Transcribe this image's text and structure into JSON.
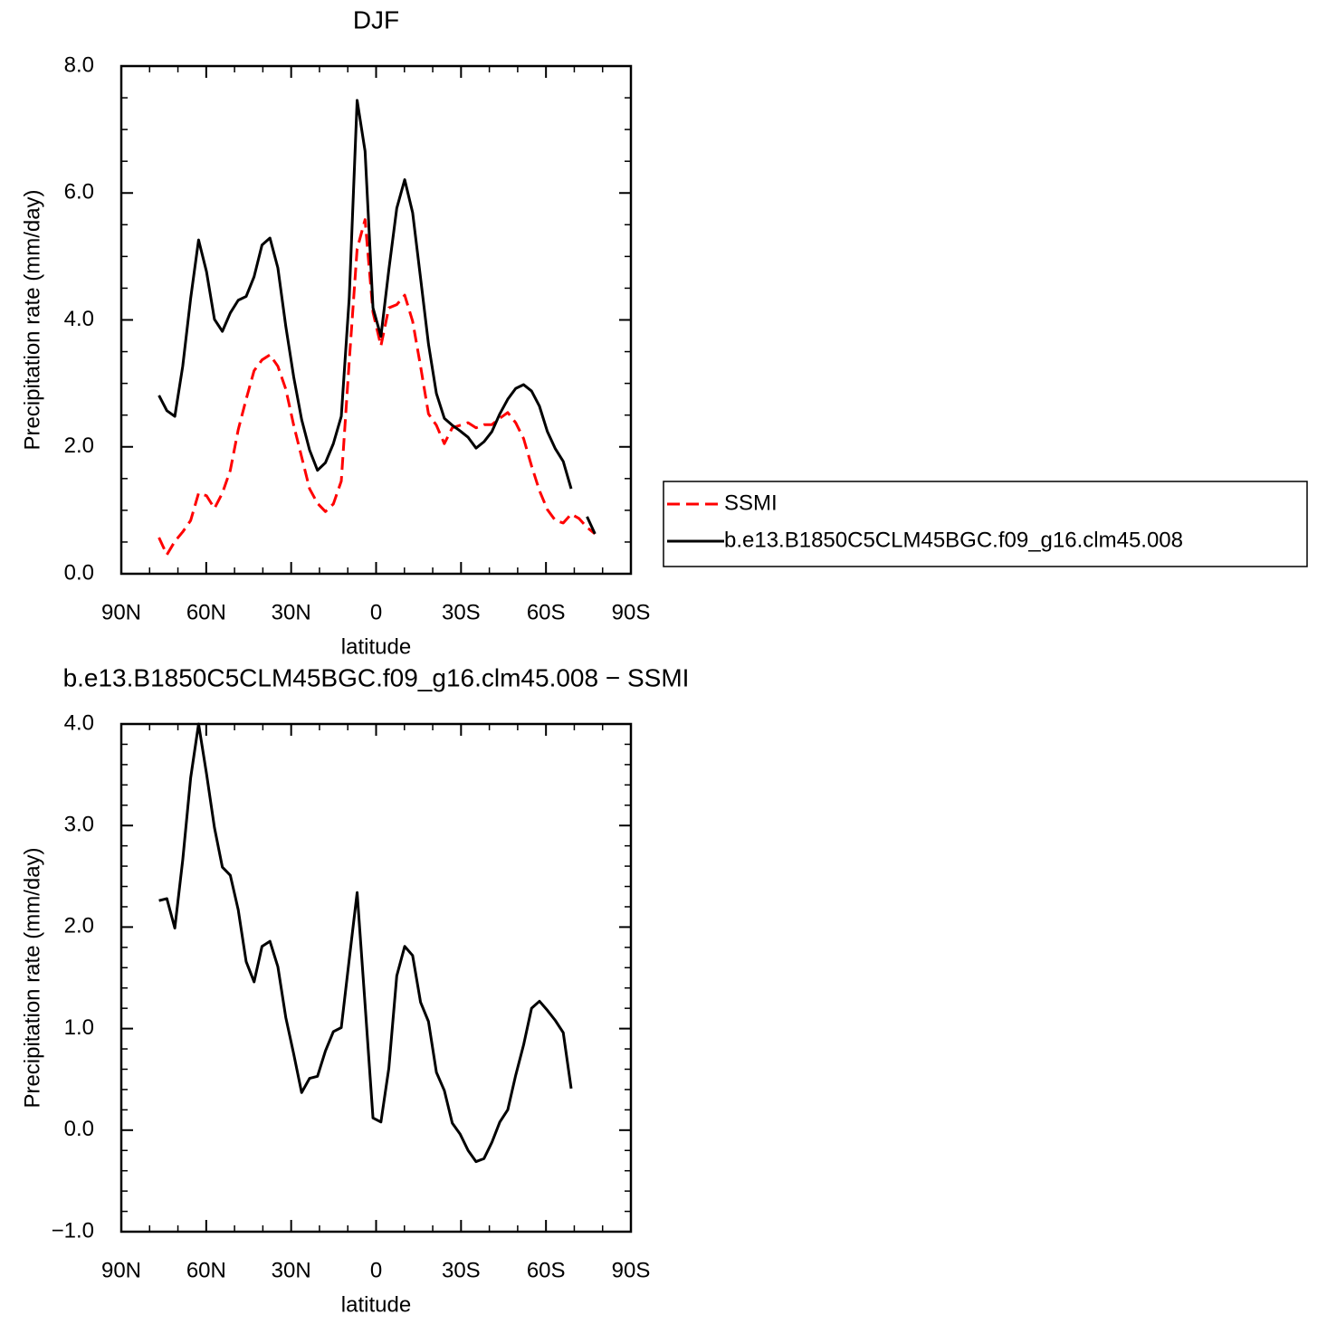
{
  "chart_data": [
    {
      "type": "line",
      "title": "DJF",
      "xlabel": "latitude",
      "ylabel": "Precipitation rate (mm/day)",
      "xlim": [
        90,
        -90
      ],
      "xticks": [
        {
          "value": 90,
          "label": "90N"
        },
        {
          "value": 60,
          "label": "60N"
        },
        {
          "value": 30,
          "label": "30N"
        },
        0,
        {
          "value": -30,
          "label": "30S"
        },
        {
          "value": -60,
          "label": "60S"
        },
        {
          "value": -90,
          "label": "90S"
        }
      ],
      "ylim": [
        0,
        8
      ],
      "yticks": [
        {
          "value": 0,
          "label": "0.0"
        },
        {
          "value": 2,
          "label": "2.0"
        },
        {
          "value": 4,
          "label": "4.0"
        },
        {
          "value": 6,
          "label": "6.0"
        },
        {
          "value": 8,
          "label": "8.0"
        }
      ],
      "legend": "right",
      "x": [
        76.7,
        73.9,
        71.1,
        68.3,
        65.5,
        62.7,
        59.9,
        57.1,
        54.3,
        51.5,
        48.7,
        45.9,
        43.1,
        40.3,
        37.5,
        34.7,
        31.9,
        29.1,
        26.3,
        23.5,
        20.7,
        17.9,
        15.1,
        12.3,
        9.5,
        6.7,
        3.9,
        1.1,
        -1.7,
        -4.5,
        -7.3,
        -10.1,
        -12.9,
        -15.7,
        -18.5,
        -21.3,
        -24.1,
        -26.9,
        -29.7,
        -32.5,
        -35.3,
        -38.1,
        -40.9,
        -43.7,
        -46.5,
        -49.3,
        -52.1,
        -54.9,
        -57.7,
        -60.5,
        -63.3,
        -66.1,
        -68.9,
        -71.7,
        -74.5,
        -77.3
      ],
      "series": [
        {
          "name": "SSMI",
          "color": "#ff0000",
          "dash": "dashed",
          "values": [
            0.57,
            0.3,
            0.51,
            0.66,
            0.84,
            1.27,
            1.23,
            1.03,
            1.27,
            1.63,
            2.27,
            2.75,
            3.2,
            3.37,
            3.45,
            3.27,
            2.91,
            2.34,
            1.84,
            1.34,
            1.11,
            0.98,
            1.1,
            1.46,
            3.34,
            5.12,
            5.58,
            4.12,
            3.59,
            4.19,
            4.24,
            4.39,
            3.98,
            3.27,
            2.52,
            2.34,
            2.05,
            2.3,
            2.34,
            2.38,
            2.3,
            2.35,
            2.35,
            2.45,
            2.54,
            2.38,
            2.13,
            1.7,
            1.31,
            1.01,
            0.84,
            0.8,
            0.94,
            0.87,
            0.73,
            0.63
          ]
        },
        {
          "name": "b.e13.B1850C5CLM45BGC.f09_g16.clm45.008",
          "color": "#000000",
          "dash": "solid",
          "values": [
            2.81,
            2.57,
            2.48,
            3.27,
            4.34,
            5.26,
            4.76,
            4.01,
            3.82,
            4.11,
            4.31,
            4.37,
            4.68,
            5.18,
            5.29,
            4.82,
            3.9,
            3.1,
            2.43,
            1.95,
            1.63,
            1.75,
            2.05,
            2.48,
            4.34,
            7.46,
            6.66,
            4.19,
            3.74,
            4.79,
            5.76,
            6.21,
            5.69,
            4.66,
            3.62,
            2.84,
            2.45,
            2.34,
            2.25,
            2.15,
            1.98,
            2.08,
            2.24,
            2.52,
            2.75,
            2.92,
            2.98,
            2.88,
            2.64,
            2.24,
            1.97,
            1.77,
            1.34,
            null,
            0.9,
            0.63
          ]
        }
      ]
    },
    {
      "type": "line",
      "title": "b.e13.B1850C5CLM45BGC.f09_g16.clm45.008 − SSMI",
      "xlabel": "latitude",
      "ylabel": "Precipitation rate (mm/day)",
      "xlim": [
        90,
        -90
      ],
      "xticks": [
        {
          "value": 90,
          "label": "90N"
        },
        {
          "value": 60,
          "label": "60N"
        },
        {
          "value": 30,
          "label": "30N"
        },
        0,
        {
          "value": -30,
          "label": "30S"
        },
        {
          "value": -60,
          "label": "60S"
        },
        {
          "value": -90,
          "label": "90S"
        }
      ],
      "ylim": [
        -1,
        4
      ],
      "yticks": [
        {
          "value": -1,
          "label": "−1.0"
        },
        {
          "value": 0,
          "label": "0.0"
        },
        {
          "value": 1,
          "label": "1.0"
        },
        {
          "value": 2,
          "label": "2.0"
        },
        {
          "value": 3,
          "label": "3.0"
        },
        {
          "value": 4,
          "label": "4.0"
        }
      ],
      "x": [
        76.7,
        73.9,
        71.1,
        68.3,
        65.5,
        62.7,
        59.9,
        57.1,
        54.3,
        51.5,
        48.7,
        45.9,
        43.1,
        40.3,
        37.5,
        34.7,
        31.9,
        29.1,
        26.3,
        23.5,
        20.7,
        17.9,
        15.1,
        12.3,
        9.5,
        6.7,
        3.9,
        1.1,
        -1.7,
        -4.5,
        -7.3,
        -10.1,
        -12.9,
        -15.7,
        -18.5,
        -21.3,
        -24.1,
        -26.9,
        -29.7,
        -32.5,
        -35.3,
        -38.1,
        -40.9,
        -43.7,
        -46.5,
        -49.3,
        -52.1,
        -54.9,
        -57.7,
        -60.5,
        -63.3,
        -66.1,
        -68.9,
        -71.7,
        -74.5,
        -77.3
      ],
      "series": [
        {
          "color": "#000000",
          "dash": "solid",
          "values": [
            2.26,
            2.28,
            1.99,
            2.66,
            3.47,
            4.0,
            3.51,
            2.98,
            2.59,
            2.51,
            2.17,
            1.66,
            1.46,
            1.81,
            1.86,
            1.61,
            1.11,
            0.75,
            0.37,
            0.51,
            0.53,
            0.78,
            0.97,
            1.01,
            1.68,
            2.34,
            1.24,
            0.12,
            0.08,
            0.61,
            1.52,
            1.81,
            1.72,
            1.26,
            1.07,
            0.57,
            0.39,
            0.07,
            -0.04,
            -0.2,
            -0.31,
            -0.28,
            -0.12,
            0.08,
            0.2,
            0.54,
            0.84,
            1.2,
            1.27,
            1.18,
            1.08,
            0.96,
            0.41,
            null,
            null,
            null
          ]
        }
      ]
    }
  ]
}
